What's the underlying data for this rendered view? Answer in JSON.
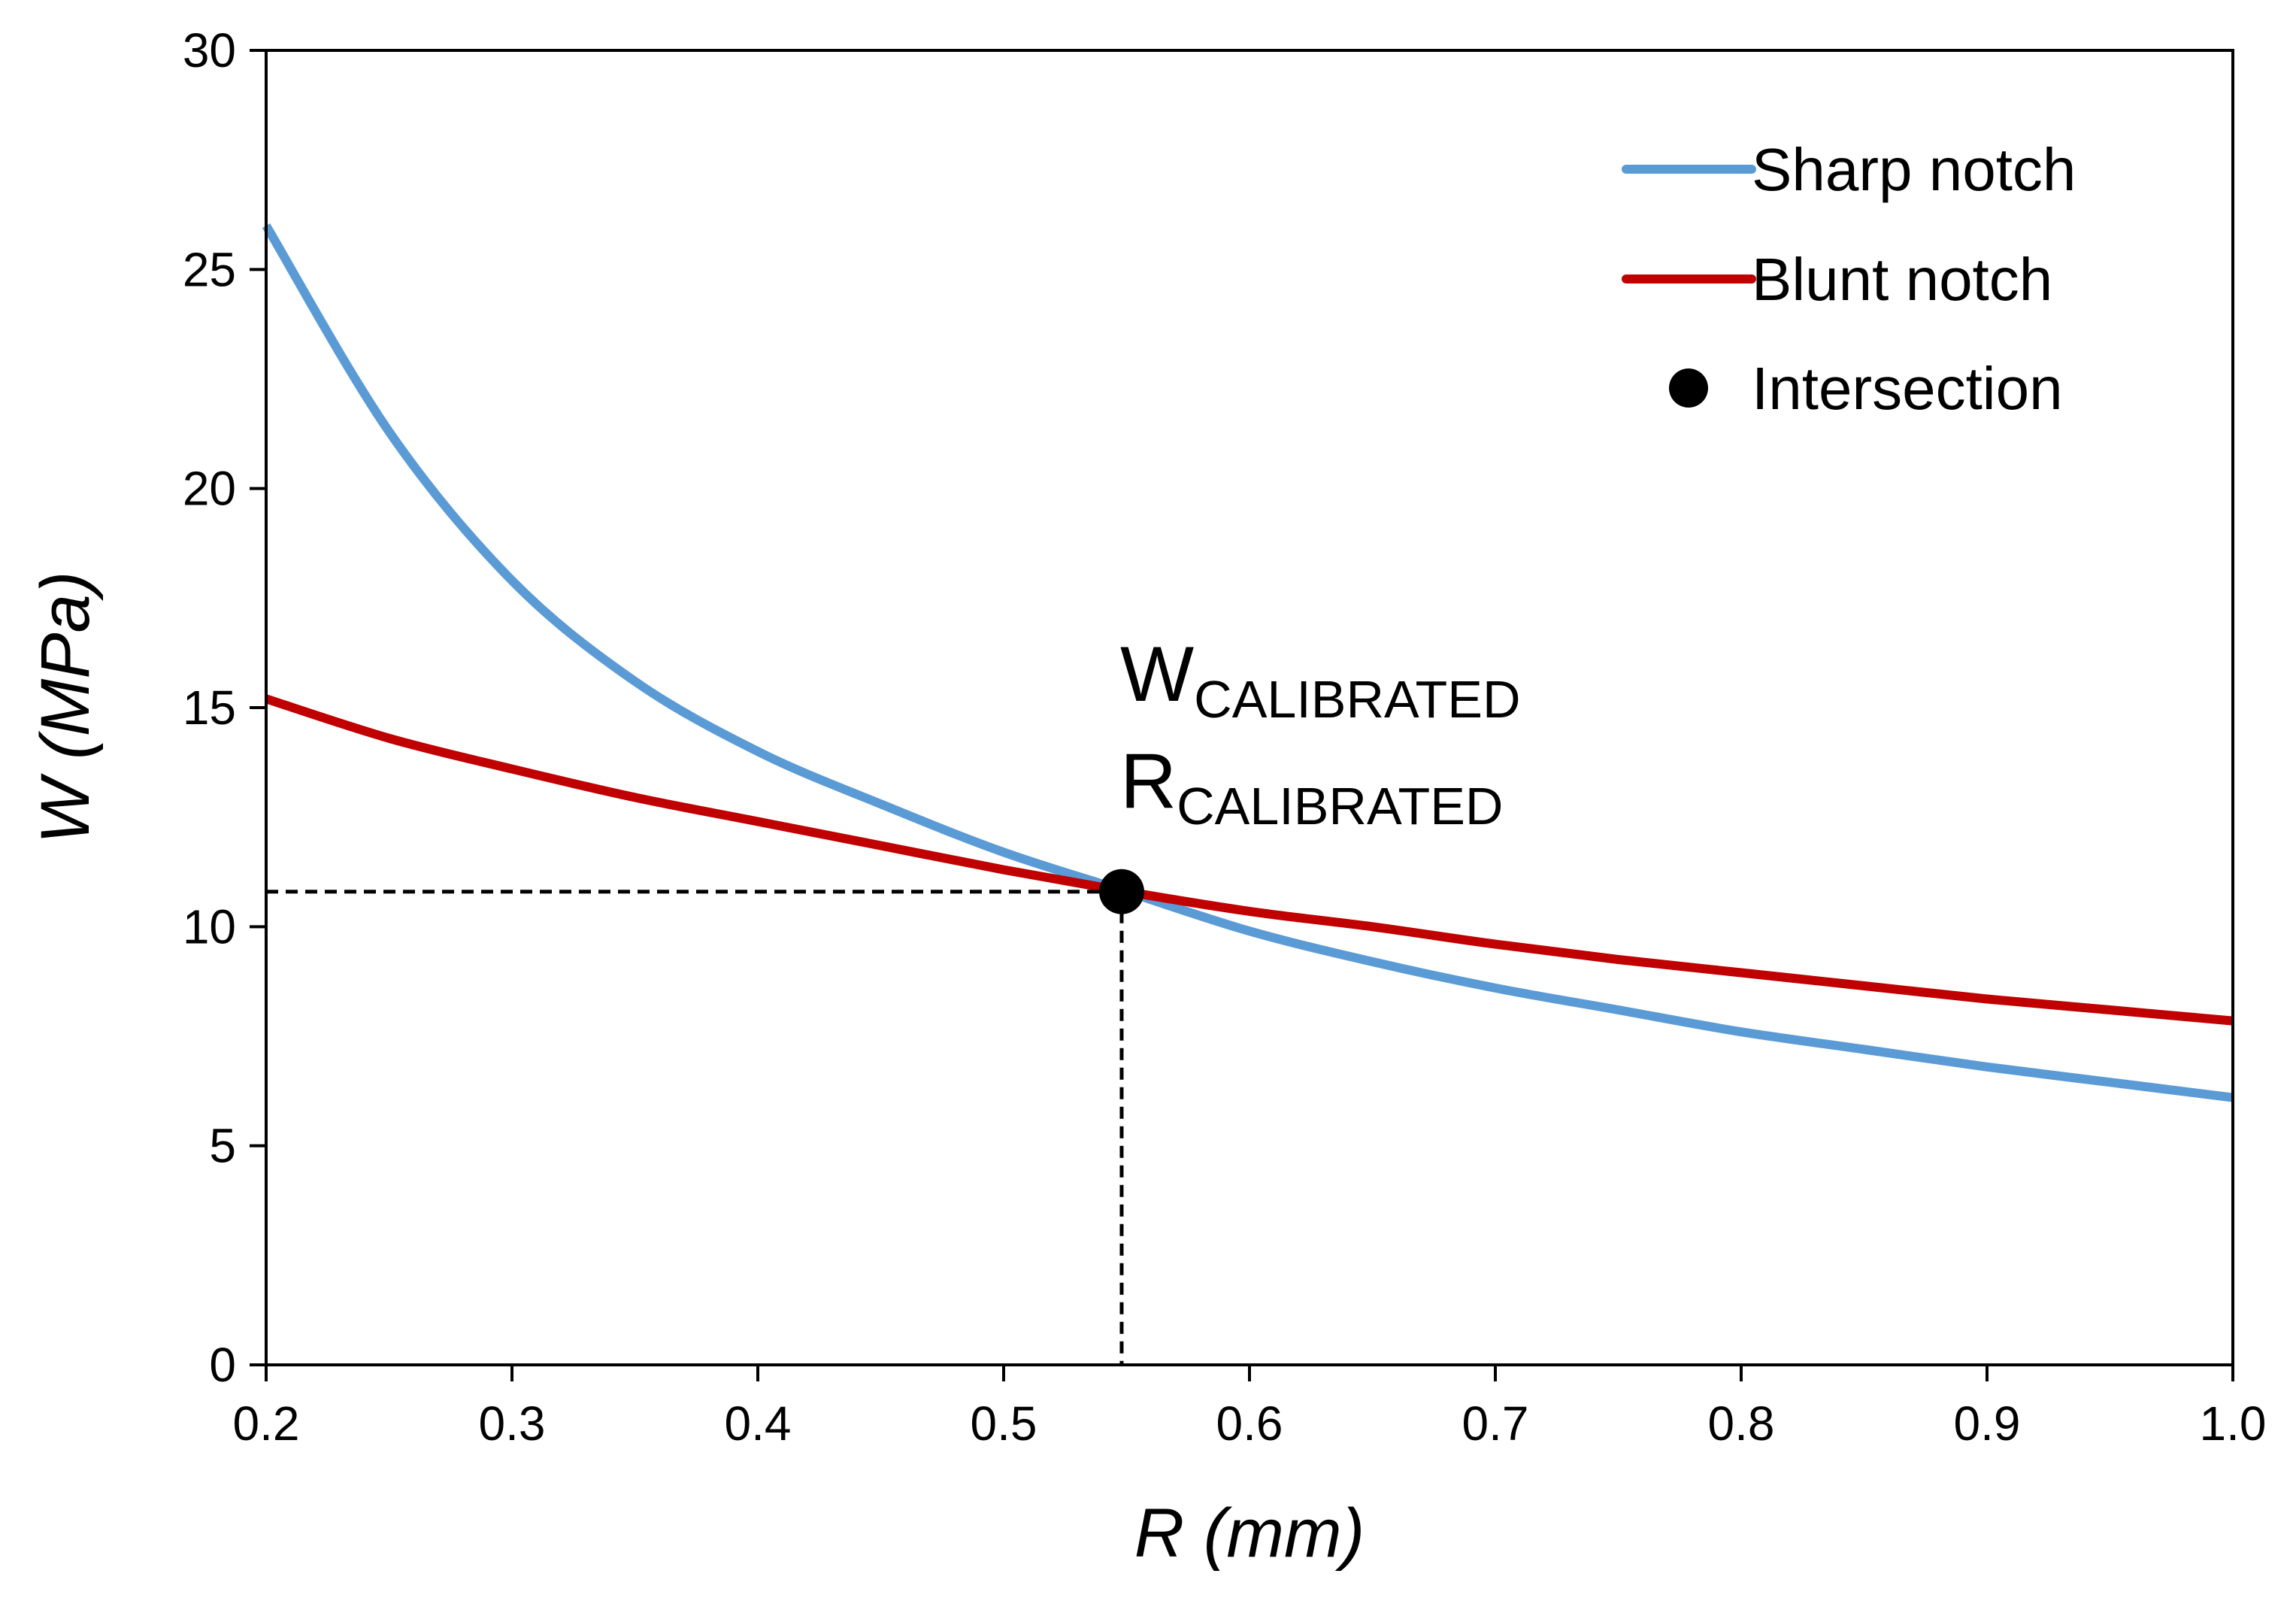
{
  "chart_data": {
    "type": "line",
    "xlabel": "R (mm)",
    "ylabel": "W (MPa)",
    "xlim": [
      0.2,
      1.0
    ],
    "ylim": [
      0,
      30
    ],
    "x_ticks": [
      "0.2",
      "0.3",
      "0.4",
      "0.5",
      "0.6",
      "0.7",
      "0.8",
      "0.9",
      "1.0"
    ],
    "y_ticks": [
      "0",
      "5",
      "10",
      "15",
      "20",
      "25",
      "30"
    ],
    "grid": false,
    "legend_position": "top-right",
    "series": [
      {
        "name": "Sharp notch",
        "color": "#5B9BD5",
        "x": [
          0.2,
          0.25,
          0.3,
          0.35,
          0.4,
          0.45,
          0.5,
          0.55,
          0.6,
          0.65,
          0.7,
          0.75,
          0.8,
          0.85,
          0.9,
          0.95,
          1.0
        ],
        "y": [
          26.0,
          21.3,
          17.9,
          15.6,
          14.0,
          12.8,
          11.7,
          10.8,
          9.9,
          9.2,
          8.6,
          8.1,
          7.6,
          7.2,
          6.8,
          6.45,
          6.1
        ]
      },
      {
        "name": "Blunt notch",
        "color": "#C00000",
        "x": [
          0.2,
          0.25,
          0.3,
          0.35,
          0.4,
          0.45,
          0.5,
          0.55,
          0.6,
          0.65,
          0.7,
          0.75,
          0.8,
          0.85,
          0.9,
          0.95,
          1.0
        ],
        "y": [
          15.2,
          14.3,
          13.6,
          12.95,
          12.4,
          11.85,
          11.3,
          10.8,
          10.35,
          10.0,
          9.6,
          9.25,
          8.95,
          8.65,
          8.35,
          8.1,
          7.85
        ]
      }
    ],
    "intersection": {
      "name": "Intersection",
      "x": 0.548,
      "y": 10.8,
      "color": "#000000"
    },
    "annotation": {
      "line1_main": "W",
      "line1_sub": "CALIBRATED",
      "line2_main": "R",
      "line2_sub": "CALIBRATED"
    }
  }
}
